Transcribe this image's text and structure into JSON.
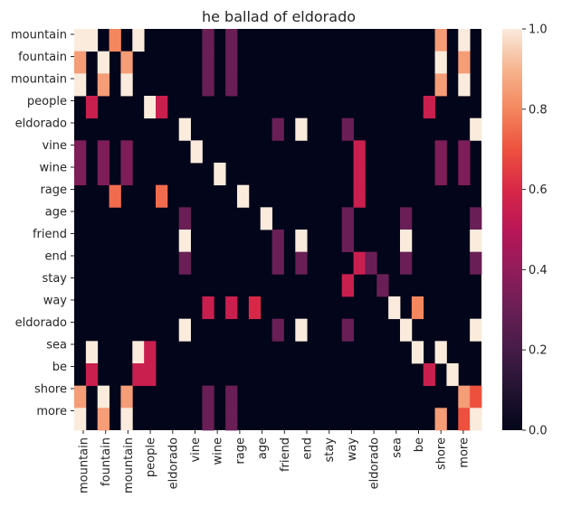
{
  "chart_data": {
    "type": "heatmap",
    "title": "he ballad of eldorado",
    "x_tick_labels": [
      "mountain",
      "fountain",
      "mountain",
      "people",
      "eldorado",
      "vine",
      "wine",
      "rage",
      "age",
      "friend",
      "end",
      "stay",
      "way",
      "eldorado",
      "sea",
      "be",
      "shore",
      "more"
    ],
    "y_tick_labels": [
      "mountain",
      "fountain",
      "mountain",
      "people",
      "eldorado",
      "vine",
      "wine",
      "rage",
      "age",
      "friend",
      "end",
      "stay",
      "way",
      "eldorado",
      "sea",
      "be",
      "shore",
      "more"
    ],
    "colorbar": {
      "min": 0.0,
      "max": 1.0,
      "ticks": [
        "0.0",
        "0.2",
        "0.4",
        "0.6",
        "0.8",
        "1.0"
      ]
    },
    "n_rows": 18,
    "n_cols": 35,
    "values": [
      [
        1,
        1,
        0,
        0.8,
        0,
        1,
        0,
        0,
        0,
        0,
        0,
        0.3,
        0,
        0.3,
        0,
        0,
        0,
        0,
        0,
        0,
        0,
        0,
        0,
        0,
        0,
        0,
        0,
        0,
        0,
        0,
        0,
        0.85,
        0,
        1,
        0
      ],
      [
        0.85,
        0,
        1,
        0,
        0.85,
        0,
        0,
        0,
        0,
        0,
        0,
        0.3,
        0,
        0.3,
        0,
        0,
        0,
        0,
        0,
        0,
        0,
        0,
        0,
        0,
        0,
        0,
        0,
        0,
        0,
        0,
        0,
        1,
        0,
        0.85,
        0
      ],
      [
        1,
        0,
        0.85,
        0,
        1,
        0,
        0,
        0,
        0,
        0,
        0,
        0.3,
        0,
        0.3,
        0,
        0,
        0,
        0,
        0,
        0,
        0,
        0,
        0,
        0,
        0,
        0,
        0,
        0,
        0,
        0,
        0,
        0.85,
        0,
        1,
        0
      ],
      [
        0,
        0.55,
        0,
        0,
        0,
        0,
        1,
        0.55,
        0,
        0,
        0,
        0,
        0,
        0,
        0,
        0,
        0,
        0,
        0,
        0,
        0,
        0,
        0,
        0,
        0,
        0,
        0,
        0,
        0,
        0,
        0.55,
        0,
        0,
        0,
        0
      ],
      [
        0,
        0,
        0,
        0,
        0,
        0,
        0,
        0,
        0,
        1,
        0,
        0,
        0,
        0,
        0,
        0,
        0,
        0.3,
        0,
        1,
        0,
        0,
        0,
        0.3,
        0,
        0,
        0,
        0,
        0,
        0,
        0,
        0,
        0,
        0,
        1
      ],
      [
        0.35,
        0,
        0.35,
        0,
        0.35,
        0,
        0,
        0,
        0,
        0,
        1,
        0,
        0,
        0,
        0,
        0,
        0,
        0,
        0,
        0,
        0,
        0,
        0,
        0,
        0.55,
        0,
        0,
        0,
        0,
        0,
        0,
        0.35,
        0,
        0.35,
        0
      ],
      [
        0.35,
        0,
        0.35,
        0,
        0.35,
        0,
        0,
        0,
        0,
        0,
        0,
        0,
        1,
        0,
        0,
        0,
        0,
        0,
        0,
        0,
        0,
        0,
        0,
        0,
        0.55,
        0,
        0,
        0,
        0,
        0,
        0,
        0.35,
        0,
        0.35,
        0
      ],
      [
        0,
        0,
        0,
        0.75,
        0,
        0,
        0,
        0.75,
        0,
        0,
        0,
        0,
        0,
        0,
        1,
        0,
        0,
        0,
        0,
        0,
        0,
        0,
        0,
        0,
        0.55,
        0,
        0,
        0,
        0,
        0,
        0,
        0,
        0,
        0,
        0
      ],
      [
        0,
        0,
        0,
        0,
        0,
        0,
        0,
        0,
        0,
        0.3,
        0,
        0,
        0,
        0,
        0,
        0,
        1,
        0,
        0,
        0,
        0,
        0,
        0,
        0.3,
        0,
        0,
        0,
        0,
        0.3,
        0,
        0,
        0,
        0,
        0,
        0.3
      ],
      [
        0,
        0,
        0,
        0,
        0,
        0,
        0,
        0,
        0,
        1,
        0,
        0,
        0,
        0,
        0,
        0,
        0,
        0.3,
        0,
        1,
        0,
        0,
        0,
        0.3,
        0,
        0,
        0,
        0,
        1,
        0,
        0,
        0,
        0,
        0,
        1
      ],
      [
        0,
        0,
        0,
        0,
        0,
        0,
        0,
        0,
        0,
        0.3,
        0,
        0,
        0,
        0,
        0,
        0,
        0,
        0.3,
        0,
        0.3,
        0,
        0,
        0,
        0,
        0.55,
        0.3,
        0,
        0,
        0.3,
        0,
        0,
        0,
        0,
        0,
        0.3
      ],
      [
        0,
        0,
        0,
        0,
        0,
        0,
        0,
        0,
        0,
        0,
        0,
        0,
        0,
        0,
        0,
        0,
        0,
        0,
        0,
        0,
        0,
        0,
        0,
        0.55,
        0,
        0,
        0.3,
        0,
        0,
        0,
        0,
        0,
        0,
        0,
        0
      ],
      [
        0,
        0,
        0,
        0,
        0,
        0,
        0,
        0,
        0,
        0,
        0,
        0.55,
        0,
        0.55,
        0,
        0.6,
        0,
        0,
        0,
        0,
        0,
        0,
        0,
        0,
        0,
        0,
        0,
        1,
        0,
        0.8,
        0,
        0,
        0,
        0,
        0
      ],
      [
        0,
        0,
        0,
        0,
        0,
        0,
        0,
        0,
        0,
        1,
        0,
        0,
        0,
        0,
        0,
        0,
        0,
        0.3,
        0,
        1,
        0,
        0,
        0,
        0.3,
        0,
        0,
        0,
        0,
        1,
        0,
        0,
        0,
        0,
        0,
        1
      ],
      [
        0,
        1,
        0,
        0,
        0,
        1,
        0.55,
        0,
        0,
        0,
        0,
        0,
        0,
        0,
        0,
        0,
        0,
        0,
        0,
        0,
        0,
        0,
        0,
        0,
        0,
        0,
        0,
        0,
        0,
        1,
        0,
        1,
        0,
        0,
        0
      ],
      [
        0,
        0.55,
        0,
        0,
        0,
        0.55,
        0.55,
        0,
        0,
        0,
        0,
        0,
        0,
        0,
        0,
        0,
        0,
        0,
        0,
        0,
        0,
        0,
        0,
        0,
        0,
        0,
        0,
        0,
        0,
        0,
        0.55,
        0,
        1,
        0,
        0
      ],
      [
        0.85,
        0,
        1,
        0,
        0.85,
        0,
        0,
        0,
        0,
        0,
        0,
        0.3,
        0,
        0.3,
        0,
        0,
        0,
        0,
        0,
        0,
        0,
        0,
        0,
        0,
        0,
        0,
        0,
        0,
        0,
        0,
        0,
        0,
        0,
        0.85,
        0.7
      ],
      [
        1,
        0,
        0.85,
        0,
        1,
        0,
        0,
        0,
        0,
        0,
        0,
        0.3,
        0,
        0.3,
        0,
        0,
        0,
        0,
        0,
        0,
        0,
        0,
        0,
        0,
        0,
        0,
        0,
        0,
        0,
        0,
        0,
        0.85,
        0,
        0.7,
        1
      ]
    ]
  }
}
